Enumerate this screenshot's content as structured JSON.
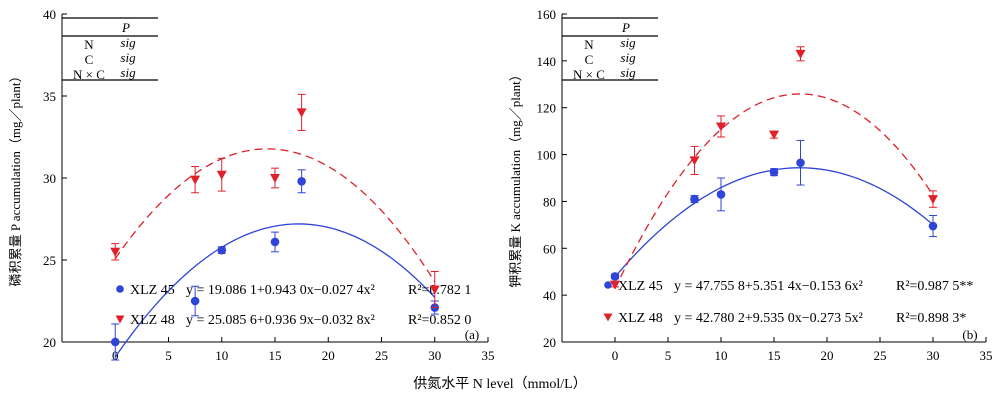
{
  "shared_xlabel": "供氮水平 N level（mmol/L）",
  "chart_data": [
    {
      "type": "scatter",
      "panel_label": "(a)",
      "ylabel": "磷积累量 P accumulation（mg／plant）",
      "xlim": [
        -5,
        35
      ],
      "ylim": [
        20,
        40
      ],
      "x_ticks": [
        "0",
        "5",
        "10",
        "15",
        "20",
        "25",
        "30",
        "35"
      ],
      "y_ticks": [
        "20",
        "25",
        "30",
        "35",
        "40"
      ],
      "grid": false,
      "table": {
        "header": "P",
        "rows": [
          {
            "factor": "N",
            "value": "sig"
          },
          {
            "factor": "C",
            "value": "sig"
          },
          {
            "factor": "N × C",
            "value": "sig"
          }
        ]
      },
      "series": [
        {
          "name": "XLZ 45",
          "color": "#2f45d8",
          "marker": "circle",
          "x": [
            0,
            7.5,
            10,
            15,
            17.5,
            30
          ],
          "y": [
            20.0,
            22.5,
            25.6,
            26.1,
            29.8,
            22.1
          ],
          "err": [
            1.1,
            0.9,
            0.2,
            0.6,
            0.7,
            0.4
          ],
          "fit": [
            19.0861,
            0.943,
            -0.0274
          ],
          "equation": "y = 19.086 1+0.943 0x−0.027 4x²",
          "r2": "R²=0.782 1"
        },
        {
          "name": "XLZ 48",
          "color": "#e0202a",
          "marker": "triangle-down",
          "x": [
            0,
            7.5,
            10,
            15,
            17.5,
            30
          ],
          "y": [
            25.5,
            29.9,
            30.2,
            30.0,
            34.0,
            23.2
          ],
          "err": [
            0.5,
            0.8,
            1.0,
            0.6,
            1.1,
            1.1
          ],
          "fit": [
            25.0856,
            0.9369,
            -0.0328
          ],
          "equation": "y = 25.085 6+0.936 9x−0.032 8x²",
          "r2": "R²=0.852 0"
        }
      ]
    },
    {
      "type": "scatter",
      "panel_label": "(b)",
      "ylabel": "钾积累量 K accumulation（mg／plant）",
      "xlim": [
        -5,
        35
      ],
      "ylim": [
        20,
        160
      ],
      "x_ticks": [
        "0",
        "5",
        "10",
        "15",
        "20",
        "25",
        "30",
        "35"
      ],
      "y_ticks": [
        "20",
        "40",
        "60",
        "80",
        "100",
        "120",
        "140",
        "160"
      ],
      "grid": false,
      "table": {
        "header": "P",
        "rows": [
          {
            "factor": "N",
            "value": "sig"
          },
          {
            "factor": "C",
            "value": "sig"
          },
          {
            "factor": "N × C",
            "value": "sig"
          }
        ]
      },
      "series": [
        {
          "name": "XLZ 45",
          "color": "#2f45d8",
          "marker": "circle",
          "x": [
            0,
            7.5,
            10,
            15,
            17.5,
            30
          ],
          "y": [
            48.0,
            81.0,
            83.0,
            92.5,
            96.5,
            69.5
          ],
          "err": [
            1.0,
            1.5,
            7.0,
            1.5,
            9.5,
            4.5
          ],
          "fit": [
            47.7558,
            5.3514,
            -0.1536
          ],
          "equation": "y = 47.755 8+5.351 4x−0.153 6x²",
          "r2": "R²=0.987 5**"
        },
        {
          "name": "XLZ 48",
          "color": "#e0202a",
          "marker": "triangle-down",
          "x": [
            0,
            7.5,
            10,
            15,
            17.5,
            30
          ],
          "y": [
            44.5,
            97.5,
            112.0,
            108.5,
            143.0,
            81.0
          ],
          "err": [
            1.0,
            6.0,
            4.5,
            1.5,
            3.0,
            3.5
          ],
          "fit": [
            42.7802,
            9.535,
            -0.2735
          ],
          "equation": "y = 42.780 2+9.535 0x−0.273 5x²",
          "r2": "R²=0.898 3*"
        }
      ]
    }
  ]
}
